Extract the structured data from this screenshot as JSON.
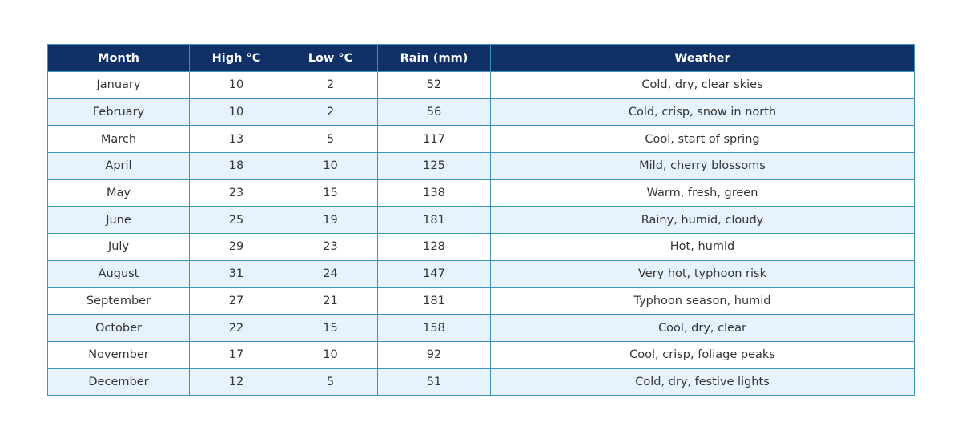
{
  "table": {
    "columns": [
      "Month",
      "High °C",
      "Low °C",
      "Rain (mm)",
      "Weather"
    ],
    "rows": [
      [
        "January",
        10,
        2,
        52,
        "Cold, dry, clear skies"
      ],
      [
        "February",
        10,
        2,
        56,
        "Cold, crisp, snow in north"
      ],
      [
        "March",
        13,
        5,
        117,
        "Cool, start of spring"
      ],
      [
        "April",
        18,
        10,
        125,
        "Mild, cherry blossoms"
      ],
      [
        "May",
        23,
        15,
        138,
        "Warm, fresh, green"
      ],
      [
        "June",
        25,
        19,
        181,
        "Rainy, humid, cloudy"
      ],
      [
        "July",
        29,
        23,
        128,
        "Hot, humid"
      ],
      [
        "August",
        31,
        24,
        147,
        "Very hot, typhoon risk"
      ],
      [
        "September",
        27,
        21,
        181,
        "Typhoon season, humid"
      ],
      [
        "October",
        22,
        15,
        158,
        "Cool, dry, clear"
      ],
      [
        "November",
        17,
        10,
        92,
        "Cool, crisp, foliage peaks"
      ],
      [
        "December",
        12,
        5,
        51,
        "Cold, dry, festive lights"
      ]
    ]
  }
}
